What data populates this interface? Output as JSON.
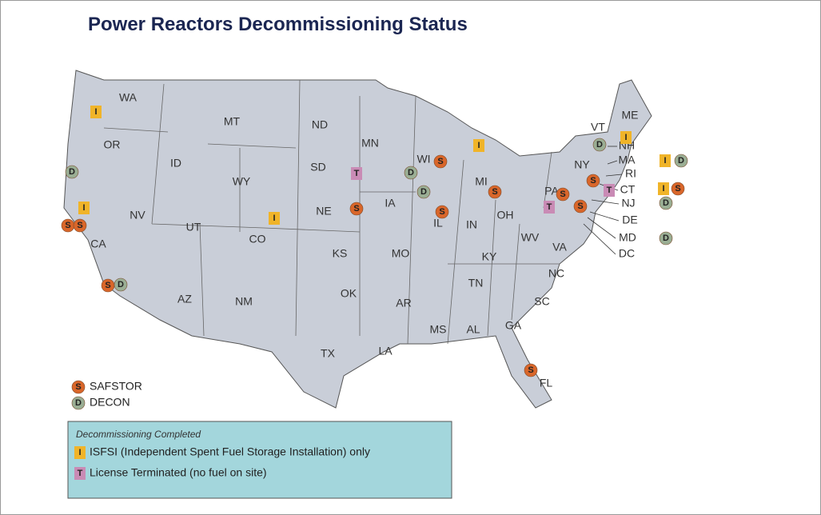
{
  "title": "Power Reactors Decommissioning Status",
  "states": [
    "WA",
    "OR",
    "CA",
    "NV",
    "ID",
    "MT",
    "WY",
    "UT",
    "AZ",
    "CO",
    "NM",
    "ND",
    "SD",
    "NE",
    "KS",
    "OK",
    "TX",
    "MN",
    "IA",
    "MO",
    "AR",
    "LA",
    "WI",
    "IL",
    "MI",
    "IN",
    "OH",
    "KY",
    "TN",
    "MS",
    "AL",
    "GA",
    "FL",
    "SC",
    "NC",
    "VA",
    "WV",
    "PA",
    "NY",
    "VT",
    "ME",
    "NH",
    "MA",
    "RI",
    "CT",
    "NJ",
    "DE",
    "MD",
    "DC"
  ],
  "legend": [
    {
      "symbol": "S",
      "label": "SAFSTOR"
    },
    {
      "symbol": "D",
      "label": "DECON"
    }
  ],
  "completed": {
    "heading": "Decommissioning Completed",
    "items": [
      {
        "symbol": "I",
        "label": "ISFSI (Independent Spent Fuel Storage Installation) only"
      },
      {
        "symbol": "T",
        "label": "License Terminated (no fuel on site)"
      }
    ]
  }
}
